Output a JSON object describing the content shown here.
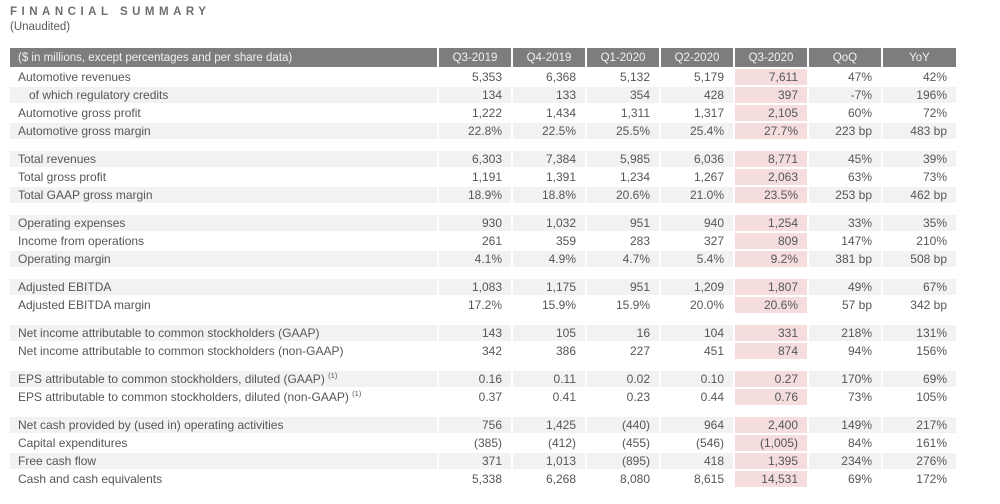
{
  "page": {
    "title": "FINANCIAL SUMMARY",
    "subtitle": "(Unaudited)"
  },
  "colors": {
    "header_bg": "#7d7d7f",
    "header_text": "#f1f1f1",
    "row_gray": "#f2f2f2",
    "row_white": "#ffffff",
    "highlight_pink": "#f5dddd",
    "body_text": "#55565a",
    "title_text": "#6d6e71"
  },
  "table": {
    "columns": [
      "($ in millions, except percentages and per share data)",
      "Q3-2019",
      "Q4-2019",
      "Q1-2020",
      "Q2-2020",
      "Q3-2020",
      "QoQ",
      "YoY"
    ],
    "highlight_column": "Q3-2020",
    "highlight_value_index": 4,
    "sections": [
      {
        "first_shade": "w",
        "rows": [
          {
            "label": "Automotive revenues",
            "values": [
              "5,353",
              "6,368",
              "5,132",
              "5,179",
              "7,611",
              "47%",
              "42%"
            ]
          },
          {
            "label": "of which regulatory credits",
            "indent": true,
            "values": [
              "134",
              "133",
              "354",
              "428",
              "397",
              "-7%",
              "196%"
            ]
          },
          {
            "label": "Automotive gross profit",
            "values": [
              "1,222",
              "1,434",
              "1,311",
              "1,317",
              "2,105",
              "60%",
              "72%"
            ]
          },
          {
            "label": "Automotive gross margin",
            "values": [
              "22.8%",
              "22.5%",
              "25.5%",
              "25.4%",
              "27.7%",
              "223 bp",
              "483 bp"
            ]
          }
        ]
      },
      {
        "first_shade": "g",
        "rows": [
          {
            "label": "Total revenues",
            "values": [
              "6,303",
              "7,384",
              "5,985",
              "6,036",
              "8,771",
              "45%",
              "39%"
            ]
          },
          {
            "label": "Total gross profit",
            "values": [
              "1,191",
              "1,391",
              "1,234",
              "1,267",
              "2,063",
              "63%",
              "73%"
            ]
          },
          {
            "label": "Total GAAP gross margin",
            "values": [
              "18.9%",
              "18.8%",
              "20.6%",
              "21.0%",
              "23.5%",
              "253 bp",
              "462 bp"
            ]
          }
        ]
      },
      {
        "first_shade": "g",
        "rows": [
          {
            "label": "Operating expenses",
            "values": [
              "930",
              "1,032",
              "951",
              "940",
              "1,254",
              "33%",
              "35%"
            ]
          },
          {
            "label": "Income from operations",
            "values": [
              "261",
              "359",
              "283",
              "327",
              "809",
              "147%",
              "210%"
            ]
          },
          {
            "label": "Operating margin",
            "values": [
              "4.1%",
              "4.9%",
              "4.7%",
              "5.4%",
              "9.2%",
              "381 bp",
              "508 bp"
            ]
          }
        ]
      },
      {
        "first_shade": "g",
        "rows": [
          {
            "label": "Adjusted EBITDA",
            "values": [
              "1,083",
              "1,175",
              "951",
              "1,209",
              "1,807",
              "49%",
              "67%"
            ]
          },
          {
            "label": "Adjusted EBITDA margin",
            "values": [
              "17.2%",
              "15.9%",
              "15.9%",
              "20.0%",
              "20.6%",
              "57 bp",
              "342 bp"
            ]
          }
        ]
      },
      {
        "first_shade": "g",
        "rows": [
          {
            "label": "Net income attributable to common stockholders (GAAP)",
            "values": [
              "143",
              "105",
              "16",
              "104",
              "331",
              "218%",
              "131%"
            ]
          },
          {
            "label": "Net income attributable to common stockholders (non-GAAP)",
            "values": [
              "342",
              "386",
              "227",
              "451",
              "874",
              "94%",
              "156%"
            ]
          }
        ]
      },
      {
        "first_shade": "g",
        "rows": [
          {
            "label": "EPS attributable to common stockholders, diluted (GAAP)",
            "sup": "(1)",
            "values": [
              "0.16",
              "0.11",
              "0.02",
              "0.10",
              "0.27",
              "170%",
              "69%"
            ]
          },
          {
            "label": "EPS attributable to common stockholders, diluted (non-GAAP)",
            "sup": "(1)",
            "values": [
              "0.37",
              "0.41",
              "0.23",
              "0.44",
              "0.76",
              "73%",
              "105%"
            ]
          }
        ]
      },
      {
        "first_shade": "g",
        "rows": [
          {
            "label": "Net cash provided by (used in) operating activities",
            "values": [
              "756",
              "1,425",
              "(440)",
              "964",
              "2,400",
              "149%",
              "217%"
            ]
          },
          {
            "label": "Capital expenditures",
            "values": [
              "(385)",
              "(412)",
              "(455)",
              "(546)",
              "(1,005)",
              "84%",
              "161%"
            ]
          },
          {
            "label": "Free cash flow",
            "values": [
              "371",
              "1,013",
              "(895)",
              "418",
              "1,395",
              "234%",
              "276%"
            ]
          },
          {
            "label": "Cash and cash equivalents",
            "values": [
              "5,338",
              "6,268",
              "8,080",
              "8,615",
              "14,531",
              "69%",
              "172%"
            ]
          }
        ]
      }
    ]
  }
}
